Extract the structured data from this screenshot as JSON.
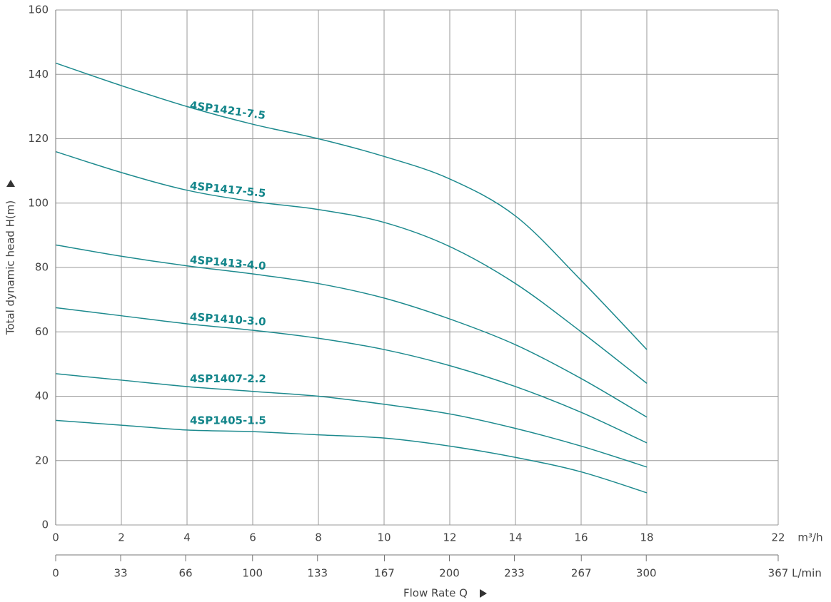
{
  "chart_data": {
    "type": "line",
    "y_label": "Total dynamic head H(m)",
    "x_label": "Flow Rate Q",
    "x_unit": "m³/h",
    "x2_unit": "L/min",
    "x": [
      0,
      2,
      4,
      6,
      8,
      10,
      12,
      14,
      16,
      18
    ],
    "series": [
      {
        "name": "4SP1421-7.5",
        "color": "#1d8a8e",
        "values": [
          143.5,
          136.5,
          130,
          124.5,
          120,
          114.5,
          107.5,
          96,
          76,
          54.5
        ]
      },
      {
        "name": "4SP1417-5.5",
        "color": "#1d8a8e",
        "values": [
          116,
          109.5,
          104,
          100.5,
          98,
          94,
          86.5,
          75,
          60,
          44
        ]
      },
      {
        "name": "4SP1413-4.0",
        "color": "#1d8a8e",
        "values": [
          87,
          83.5,
          80.5,
          78,
          75,
          70.5,
          64,
          56,
          45.5,
          33.5
        ]
      },
      {
        "name": "4SP1410-3.0",
        "color": "#1d8a8e",
        "values": [
          67.5,
          65,
          62.5,
          60.5,
          58,
          54.5,
          49.5,
          43,
          35,
          25.5
        ]
      },
      {
        "name": "4SP1407-2.2",
        "color": "#1d8a8e",
        "values": [
          47,
          45,
          43,
          41.5,
          40,
          37.5,
          34.5,
          30,
          24.5,
          18
        ]
      },
      {
        "name": "4SP1405-1.5",
        "color": "#1d8a8e",
        "values": [
          32.5,
          31,
          29.5,
          29,
          28,
          27,
          24.5,
          21,
          16.5,
          10
        ]
      }
    ],
    "xlim": [
      0,
      22
    ],
    "xticks": [
      0,
      2,
      4,
      6,
      8,
      10,
      12,
      14,
      16,
      18,
      22
    ],
    "x2lim": [
      0,
      367
    ],
    "x2ticks": [
      0,
      33,
      66,
      100,
      133,
      167,
      200,
      233,
      267,
      300,
      367
    ],
    "ylim": [
      0,
      160
    ],
    "yticks": [
      0,
      20,
      40,
      60,
      80,
      100,
      120,
      140,
      160
    ],
    "grid": true
  }
}
